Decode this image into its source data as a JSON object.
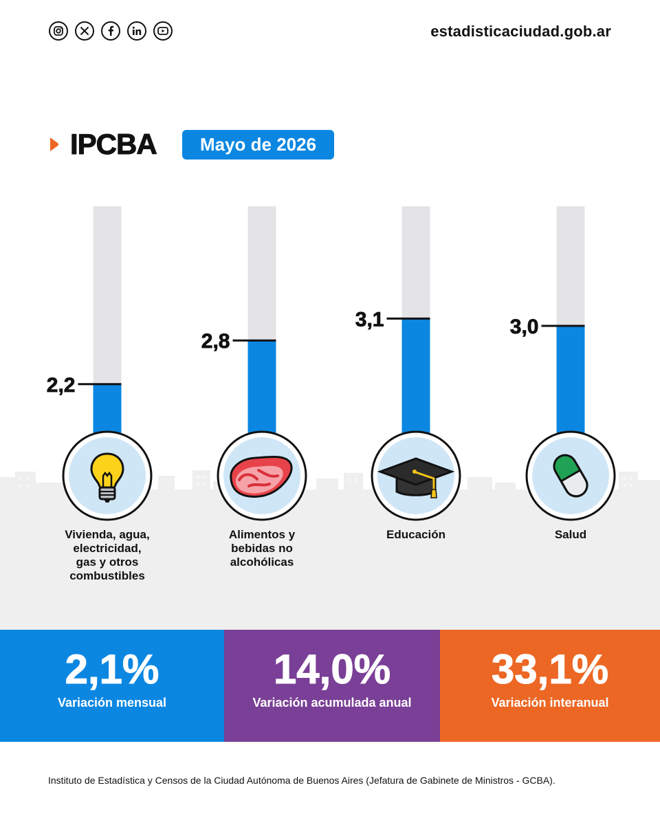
{
  "header": {
    "social_icons": [
      "instagram-icon",
      "x-icon",
      "facebook-icon",
      "linkedin-icon",
      "youtube-icon"
    ],
    "site": "estadisticaciudad.gob.ar"
  },
  "title": "IPCBA",
  "date_badge": "Mayo de 2026",
  "colors": {
    "accent_blue": "#0b87e2",
    "track_grey": "#e4e4e7",
    "purple": "#7a3f96",
    "orange": "#ec6724",
    "icon_bg": "#cfe6f7"
  },
  "chart_data": {
    "type": "bar",
    "categories": [
      "Vivienda, agua, electricidad, gas y otros combustibles",
      "Alimentos y bebidas no alcohólicas",
      "Educación",
      "Salud"
    ],
    "category_lines": [
      [
        "Vivienda, agua,",
        "electricidad,",
        "gas y otros",
        "combustibles"
      ],
      [
        "Alimentos y",
        "bebidas no",
        "alcohólicas"
      ],
      [
        "Educación"
      ],
      [
        "Salud"
      ]
    ],
    "values": [
      2.2,
      2.8,
      3.1,
      3.0
    ],
    "value_labels": [
      "2,2",
      "2,8",
      "3,1",
      "3,0"
    ],
    "icons": [
      "lightbulb-icon",
      "meat-icon",
      "graduation-cap-icon",
      "pill-icon"
    ]
  },
  "stats": [
    {
      "value": "2,1%",
      "label": "Variación mensual",
      "color": "#0b87e2"
    },
    {
      "value": "14,0%",
      "label": "Variación acumulada anual",
      "color": "#7a3f96"
    },
    {
      "value": "33,1%",
      "label": "Variación interanual",
      "color": "#ec6724"
    }
  ],
  "footer": "Instituto de Estadística y Censos de la Ciudad Autónoma de Buenos Aires (Jefatura de Gabinete de Ministros - GCBA)."
}
